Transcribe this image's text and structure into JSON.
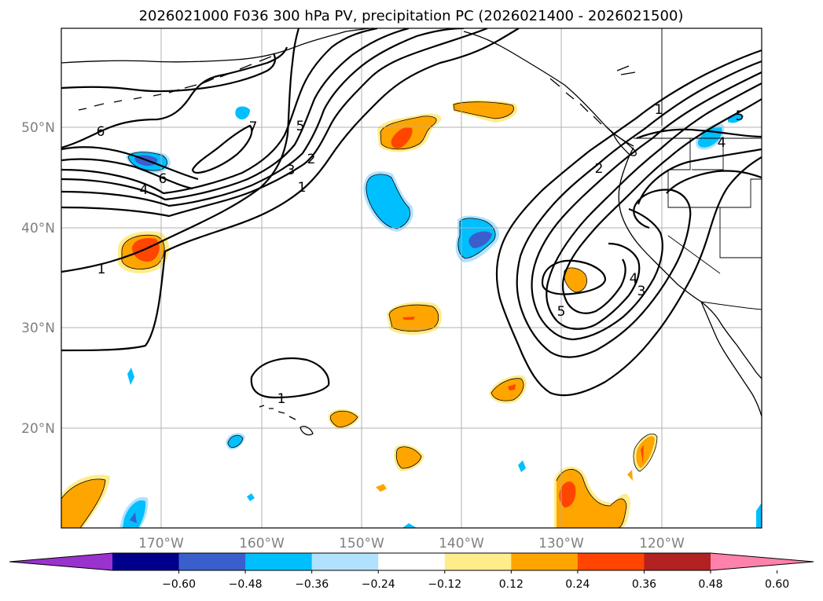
{
  "title": "2026021000 F036 300 hPa PV, precipitation PC (2026021400 - 2026021500)",
  "longitude_labels": [
    "170°W",
    "160°W",
    "150°W",
    "140°W",
    "130°W",
    "120°W"
  ],
  "latitude_labels": [
    "50°N",
    "40°N",
    "30°N",
    "20°N"
  ],
  "pv_contour_labels": [
    "6",
    "7",
    "5",
    "3",
    "2",
    "1",
    "4",
    "6",
    "4",
    "1",
    "1",
    "2",
    "1",
    "5",
    "4",
    "5",
    "4",
    "3",
    "5",
    "1"
  ],
  "colorbar": {
    "tick_labels": [
      "−0.60",
      "−0.48",
      "−0.36",
      "−0.24",
      "−0.12",
      "0.12",
      "0.24",
      "0.36",
      "0.48",
      "0.60"
    ],
    "colors": [
      "#9a32cd",
      "#00008b",
      "#3a5fcd",
      "#00bfff",
      "#b0e2ff",
      "#ffffff",
      "#ffec8b",
      "#ffa500",
      "#ff4500",
      "#b22222",
      "#ff82ab"
    ]
  },
  "legend_colors": {
    "ocean": "#ffffff",
    "grid": "#b0b0b0",
    "contour": "#000000"
  }
}
